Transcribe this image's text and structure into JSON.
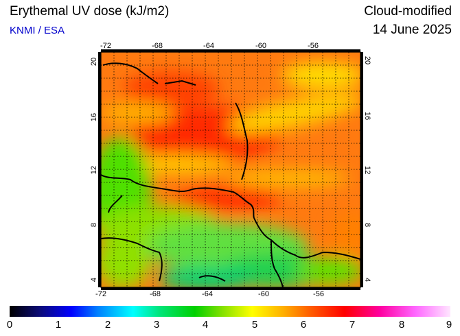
{
  "header": {
    "title": "Erythemal UV dose (kJ/m2)",
    "credit": "KNMI / ESA",
    "product": "Cloud-modified",
    "date": "14 June 2025"
  },
  "map": {
    "lon_ticks": [
      "-72",
      "-68",
      "-64",
      "-60",
      "-56"
    ],
    "lat_ticks": [
      "20",
      "16",
      "12",
      "8",
      "4"
    ],
    "lon_range": [
      -72,
      -52
    ],
    "lat_range": [
      3.5,
      20.5
    ]
  },
  "colorbar": {
    "labels": [
      "0",
      "1",
      "2",
      "3",
      "4",
      "5",
      "6",
      "7",
      "8",
      "9"
    ],
    "range": [
      0,
      9
    ]
  }
}
